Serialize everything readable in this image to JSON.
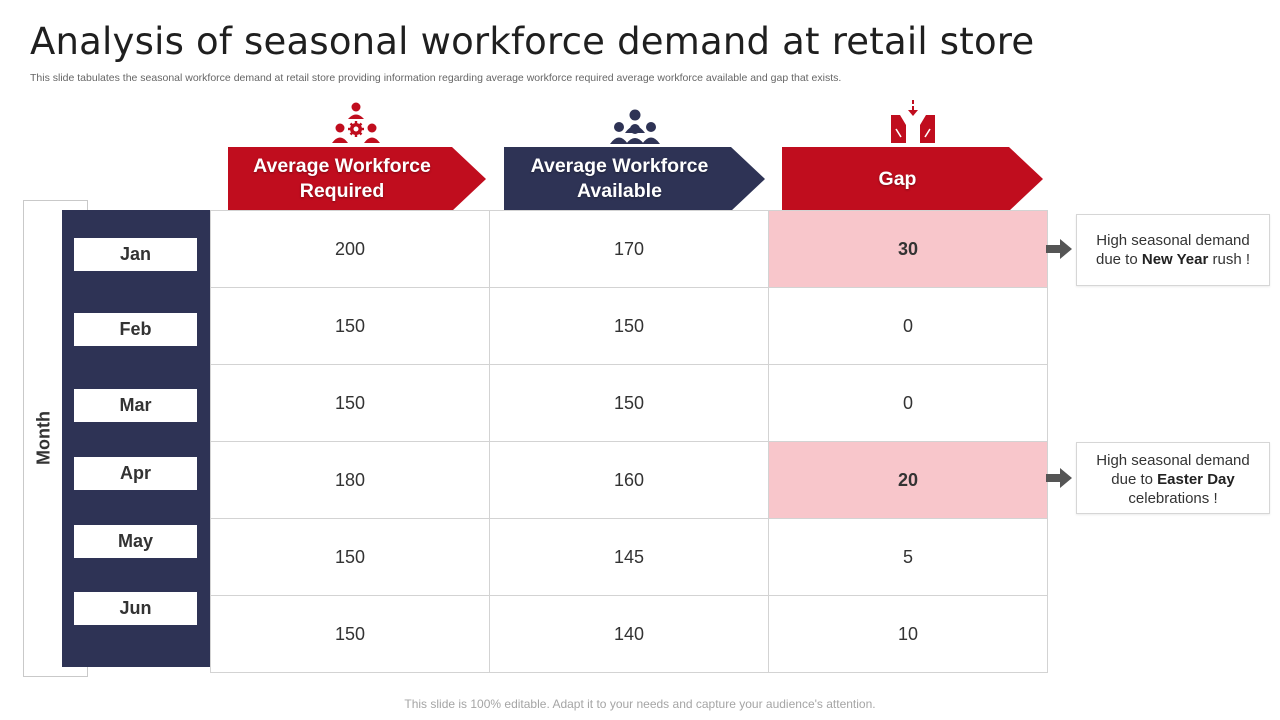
{
  "slide": {
    "title": "Analysis of seasonal workforce demand at retail store",
    "subtitle": "This slide tabulates the seasonal workforce demand at retail store providing information regarding  average workforce required average workforce available and gap that exists.",
    "footer": "This slide is 100%  editable.  Adapt it to your needs and capture your audience's attention."
  },
  "colors": {
    "red": "#c00d1e",
    "navy": "#2e3355",
    "highlight": "#f8c6cb"
  },
  "month_axis_label": "Month",
  "columns": [
    {
      "label": "Average Workforce Required",
      "icon": "team-gear-icon"
    },
    {
      "label": "Average Workforce Available",
      "icon": "group-people-icon"
    },
    {
      "label": "Gap",
      "icon": "gap-funnel-icon"
    }
  ],
  "rows": [
    {
      "month": "Jan",
      "required": "200",
      "available": "170",
      "gap": "30",
      "highlight": true
    },
    {
      "month": "Feb",
      "required": "150",
      "available": "150",
      "gap": "0",
      "highlight": false
    },
    {
      "month": "Mar",
      "required": "150",
      "available": "150",
      "gap": "0",
      "highlight": false
    },
    {
      "month": "Apr",
      "required": "180",
      "available": "160",
      "gap": "20",
      "highlight": true
    },
    {
      "month": "May",
      "required": "150",
      "available": "145",
      "gap": "5",
      "highlight": false
    },
    {
      "month": "Jun",
      "required": "150",
      "available": "140",
      "gap": "10",
      "highlight": false
    }
  ],
  "notes": [
    {
      "before": "High seasonal demand due to ",
      "bold": "New Year",
      "after": " rush !"
    },
    {
      "before": "High seasonal demand due to ",
      "bold": "Easter Day",
      "after": " celebrations !"
    }
  ]
}
